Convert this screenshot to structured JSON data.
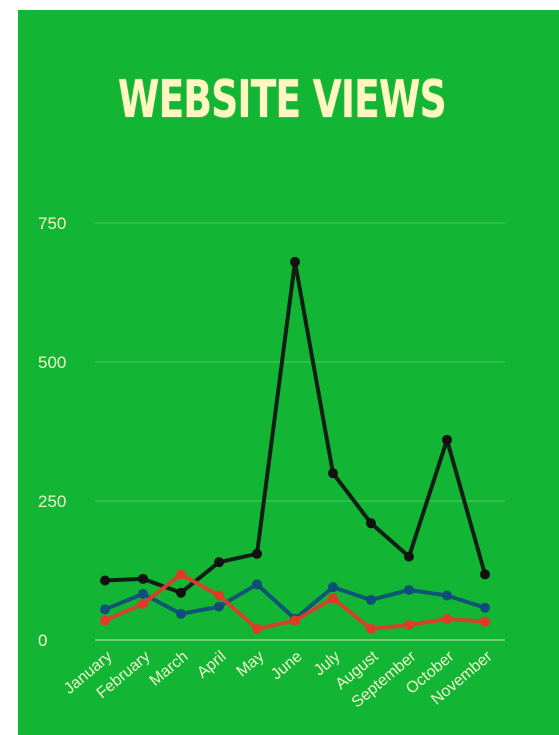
{
  "chart_data": {
    "type": "line",
    "title": "WEBSITE VIEWS",
    "xlabel": "",
    "ylabel": "",
    "categories": [
      "January",
      "February",
      "March",
      "April",
      "May",
      "June",
      "July",
      "August",
      "September",
      "October",
      "November"
    ],
    "series": [
      {
        "color": "#111111",
        "values": [
          107,
          110,
          85,
          140,
          155,
          680,
          300,
          210,
          150,
          360,
          118
        ]
      },
      {
        "color": "#0e4f7a",
        "values": [
          55,
          83,
          47,
          60,
          100,
          38,
          95,
          72,
          90,
          80,
          58
        ]
      },
      {
        "color": "#e23a2a",
        "values": [
          35,
          65,
          118,
          80,
          20,
          35,
          75,
          20,
          27,
          38,
          33
        ]
      }
    ],
    "ylim": [
      0,
      750
    ],
    "yticks": [
      0,
      250,
      500,
      750
    ],
    "ytick_labels": [
      "0",
      "250",
      "500",
      "750"
    ],
    "grid": true,
    "legend": "none"
  },
  "colors": {
    "background": "#13b535",
    "title": "#fff7c2",
    "axis_text": "#eef7c8"
  }
}
